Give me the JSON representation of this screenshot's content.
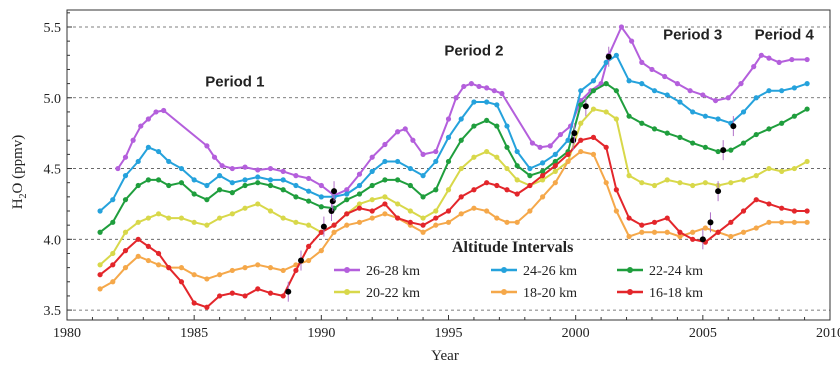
{
  "chart_data": {
    "type": "line",
    "title": "",
    "xlabel": "Year",
    "ylabel_main": "H",
    "ylabel_sub": "2",
    "ylabel_rest": "O (ppmv)",
    "xlim": [
      1980,
      2010
    ],
    "ylim": [
      3.43,
      5.62
    ],
    "xticks": [
      1980,
      1985,
      1990,
      1995,
      2000,
      2005,
      2010
    ],
    "yticks": [
      3.5,
      4.0,
      4.5,
      5.0,
      5.5
    ],
    "ytick_labels": [
      "3.5",
      "4.0",
      "4.5",
      "5.0",
      "5.5"
    ],
    "grid": "horizontal-dashed",
    "legend_title": "Altitude Intervals",
    "legend_placement": "bottom-right",
    "annotations": [
      {
        "text": "Period 1",
        "x": 1986.6,
        "y": 5.08
      },
      {
        "text": "Period 2",
        "x": 1996.0,
        "y": 5.3
      },
      {
        "text": "Period 3",
        "x": 2004.6,
        "y": 5.41
      },
      {
        "text": "Period 4",
        "x": 2008.2,
        "y": 5.41
      }
    ],
    "breakpoints": [
      {
        "x": 1988.7,
        "y": 3.63
      },
      {
        "x": 1989.2,
        "y": 3.85
      },
      {
        "x": 1990.1,
        "y": 4.09
      },
      {
        "x": 1990.4,
        "y": 4.2
      },
      {
        "x": 1990.45,
        "y": 4.27
      },
      {
        "x": 1990.5,
        "y": 4.34
      },
      {
        "x": 1999.9,
        "y": 4.7
      },
      {
        "x": 1999.95,
        "y": 4.75
      },
      {
        "x": 2000.4,
        "y": 4.94
      },
      {
        "x": 2001.3,
        "y": 5.29
      },
      {
        "x": 2005.3,
        "y": 4.12
      },
      {
        "x": 2005.6,
        "y": 4.34
      },
      {
        "x": 2005.8,
        "y": 4.63
      },
      {
        "x": 2006.2,
        "y": 4.8
      },
      {
        "x": 2005.0,
        "y": 4.0
      }
    ],
    "series": [
      {
        "name": "26-28 km",
        "color": "#b45fdc",
        "x": [
          1982.0,
          1982.3,
          1982.6,
          1982.9,
          1983.2,
          1983.5,
          1983.8,
          1985.5,
          1985.8,
          1986.1,
          1986.5,
          1987,
          1987.5,
          1988,
          1988.5,
          1989,
          1989.5,
          1990,
          1990.5,
          1991,
          1991.5,
          1992,
          1992.5,
          1993,
          1993.3,
          1993.6,
          1994,
          1994.5,
          1995,
          1995.3,
          1995.6,
          1995.9,
          1996.2,
          1996.5,
          1996.8,
          1997.1,
          1998.3,
          1998.6,
          1999,
          1999.4,
          1999.8,
          2000.2,
          2000.6,
          2001.0,
          2001.3,
          2001.8,
          2002.2,
          2002.6,
          2003,
          2003.5,
          2004,
          2004.5,
          2005,
          2005.5,
          2006,
          2006.5,
          2007,
          2007.3,
          2007.6,
          2008,
          2008.5,
          2009.1
        ],
        "y": [
          4.5,
          4.58,
          4.7,
          4.8,
          4.85,
          4.9,
          4.91,
          4.66,
          4.58,
          4.52,
          4.5,
          4.51,
          4.49,
          4.5,
          4.48,
          4.45,
          4.43,
          4.38,
          4.31,
          4.35,
          4.46,
          4.58,
          4.67,
          4.76,
          4.78,
          4.7,
          4.6,
          4.62,
          4.85,
          5.0,
          5.08,
          5.1,
          5.08,
          5.07,
          5.05,
          5.03,
          4.68,
          4.65,
          4.66,
          4.74,
          4.8,
          4.98,
          5.05,
          5.1,
          5.3,
          5.5,
          5.4,
          5.25,
          5.2,
          5.15,
          5.1,
          5.05,
          5.02,
          4.98,
          5.0,
          5.1,
          5.22,
          5.3,
          5.28,
          5.25,
          5.27,
          5.27
        ]
      },
      {
        "name": "24-26 km",
        "color": "#25a2dc",
        "x": [
          1981.3,
          1981.8,
          1982.3,
          1982.8,
          1983.2,
          1983.6,
          1984,
          1984.5,
          1985,
          1985.5,
          1986,
          1986.5,
          1987,
          1987.5,
          1988,
          1988.5,
          1989,
          1989.5,
          1990,
          1990.5,
          1991,
          1991.5,
          1992,
          1992.5,
          1993,
          1993.5,
          1994,
          1994.5,
          1995,
          1995.5,
          1996,
          1996.5,
          1996.9,
          1997.3,
          1997.7,
          1998.2,
          1998.7,
          1999.2,
          1999.7,
          2000.2,
          2000.7,
          2001.2,
          2001.6,
          2002.1,
          2002.6,
          2003.1,
          2003.6,
          2004.1,
          2004.6,
          2005.1,
          2005.6,
          2006.1,
          2006.6,
          2007.1,
          2007.6,
          2008.1,
          2008.6,
          2009.1
        ],
        "y": [
          4.2,
          4.28,
          4.45,
          4.55,
          4.65,
          4.62,
          4.55,
          4.5,
          4.42,
          4.38,
          4.45,
          4.4,
          4.42,
          4.44,
          4.42,
          4.42,
          4.38,
          4.34,
          4.3,
          4.3,
          4.32,
          4.38,
          4.48,
          4.55,
          4.55,
          4.5,
          4.45,
          4.55,
          4.72,
          4.85,
          4.97,
          4.97,
          4.95,
          4.8,
          4.62,
          4.5,
          4.54,
          4.6,
          4.7,
          5.05,
          5.12,
          5.25,
          5.3,
          5.12,
          5.1,
          5.05,
          5.02,
          4.97,
          4.9,
          4.87,
          4.85,
          4.82,
          4.9,
          5.0,
          5.05,
          5.05,
          5.07,
          5.1
        ]
      },
      {
        "name": "22-24 km",
        "color": "#1f9e3d",
        "x": [
          1981.3,
          1981.8,
          1982.3,
          1982.8,
          1983.2,
          1983.6,
          1984,
          1984.5,
          1985,
          1985.5,
          1986,
          1986.5,
          1987,
          1987.5,
          1988,
          1988.5,
          1989,
          1989.5,
          1990,
          1990.5,
          1991,
          1991.5,
          1992,
          1992.5,
          1993,
          1993.5,
          1994,
          1994.5,
          1995,
          1995.5,
          1996,
          1996.5,
          1996.9,
          1997.3,
          1997.7,
          1998.2,
          1998.7,
          1999.2,
          1999.7,
          2000.2,
          2000.7,
          2001.2,
          2001.6,
          2002.1,
          2002.6,
          2003.1,
          2003.6,
          2004.1,
          2004.6,
          2005.1,
          2005.6,
          2006.1,
          2006.6,
          2007.1,
          2007.6,
          2008.1,
          2008.6,
          2009.1
        ],
        "y": [
          4.05,
          4.12,
          4.28,
          4.38,
          4.42,
          4.42,
          4.38,
          4.4,
          4.32,
          4.28,
          4.35,
          4.33,
          4.38,
          4.4,
          4.38,
          4.35,
          4.3,
          4.27,
          4.23,
          4.22,
          4.28,
          4.32,
          4.38,
          4.42,
          4.42,
          4.38,
          4.3,
          4.35,
          4.55,
          4.7,
          4.8,
          4.84,
          4.8,
          4.65,
          4.52,
          4.45,
          4.48,
          4.55,
          4.62,
          4.95,
          5.05,
          5.1,
          5.05,
          4.87,
          4.82,
          4.78,
          4.75,
          4.72,
          4.68,
          4.65,
          4.62,
          4.63,
          4.68,
          4.74,
          4.78,
          4.82,
          4.87,
          4.92
        ]
      },
      {
        "name": "20-22 km",
        "color": "#d8d84a",
        "x": [
          1981.3,
          1981.8,
          1982.3,
          1982.8,
          1983.2,
          1983.6,
          1984,
          1984.5,
          1985,
          1985.5,
          1986,
          1986.5,
          1987,
          1987.5,
          1988,
          1988.5,
          1989,
          1989.5,
          1990,
          1990.5,
          1991,
          1991.5,
          1992,
          1992.5,
          1993,
          1993.5,
          1994,
          1994.5,
          1995,
          1995.5,
          1996,
          1996.5,
          1996.9,
          1997.3,
          1997.7,
          1998.2,
          1998.7,
          1999.2,
          1999.7,
          2000.2,
          2000.7,
          2001.2,
          2001.6,
          2002.1,
          2002.6,
          2003.1,
          2003.6,
          2004.1,
          2004.6,
          2005.1,
          2005.6,
          2006.1,
          2006.6,
          2007.1,
          2007.6,
          2008.1,
          2008.6,
          2009.1
        ],
        "y": [
          3.82,
          3.9,
          4.05,
          4.12,
          4.15,
          4.18,
          4.15,
          4.15,
          4.12,
          4.1,
          4.15,
          4.18,
          4.22,
          4.25,
          4.2,
          4.15,
          4.12,
          4.1,
          4.05,
          4.1,
          4.18,
          4.25,
          4.28,
          4.3,
          4.25,
          4.2,
          4.15,
          4.2,
          4.35,
          4.5,
          4.58,
          4.62,
          4.58,
          4.5,
          4.42,
          4.38,
          4.42,
          4.48,
          4.55,
          4.82,
          4.92,
          4.9,
          4.85,
          4.45,
          4.4,
          4.38,
          4.42,
          4.4,
          4.38,
          4.4,
          4.38,
          4.4,
          4.42,
          4.45,
          4.5,
          4.48,
          4.5,
          4.55
        ]
      },
      {
        "name": "18-20 km",
        "color": "#f5a84a",
        "x": [
          1981.3,
          1981.8,
          1982.3,
          1982.8,
          1983.2,
          1983.6,
          1984,
          1984.5,
          1985,
          1985.5,
          1986,
          1986.5,
          1987,
          1987.5,
          1988,
          1988.5,
          1989,
          1989.5,
          1990,
          1990.5,
          1991,
          1991.5,
          1992,
          1992.5,
          1993,
          1993.5,
          1994,
          1994.5,
          1995,
          1995.5,
          1996,
          1996.5,
          1996.9,
          1997.3,
          1997.7,
          1998.2,
          1998.7,
          1999.2,
          1999.7,
          2000.2,
          2000.7,
          2001.2,
          2001.6,
          2002.1,
          2002.6,
          2003.1,
          2003.6,
          2004.1,
          2004.6,
          2005.1,
          2005.6,
          2006.1,
          2006.6,
          2007.1,
          2007.6,
          2008.1,
          2008.6,
          2009.1
        ],
        "y": [
          3.65,
          3.7,
          3.8,
          3.88,
          3.85,
          3.82,
          3.8,
          3.8,
          3.75,
          3.72,
          3.75,
          3.78,
          3.8,
          3.82,
          3.8,
          3.78,
          3.82,
          3.85,
          3.92,
          4.05,
          4.1,
          4.12,
          4.15,
          4.18,
          4.15,
          4.1,
          4.05,
          4.1,
          4.12,
          4.18,
          4.22,
          4.2,
          4.15,
          4.12,
          4.12,
          4.2,
          4.3,
          4.4,
          4.55,
          4.62,
          4.6,
          4.4,
          4.2,
          4.02,
          4.05,
          4.05,
          4.05,
          4.02,
          4.05,
          4.08,
          4.05,
          4.02,
          4.05,
          4.08,
          4.12,
          4.12,
          4.12,
          4.12
        ]
      },
      {
        "name": "16-18 km",
        "color": "#e3262b",
        "x": [
          1981.3,
          1981.8,
          1982.3,
          1982.8,
          1983.2,
          1983.6,
          1984,
          1984.5,
          1985,
          1985.5,
          1986,
          1986.5,
          1987,
          1987.5,
          1988,
          1988.5,
          1989,
          1989.5,
          1990,
          1990.5,
          1991,
          1991.5,
          1992,
          1992.5,
          1993,
          1993.5,
          1994,
          1994.5,
          1995,
          1995.5,
          1996,
          1996.5,
          1996.9,
          1997.3,
          1997.7,
          1998.2,
          1998.7,
          1999.2,
          1999.7,
          2000.2,
          2000.7,
          2001.2,
          2001.6,
          2002.1,
          2002.6,
          2003.1,
          2003.6,
          2004.1,
          2004.6,
          2005.1,
          2005.6,
          2006.1,
          2006.6,
          2007.1,
          2007.6,
          2008.1,
          2008.6,
          2009.1
        ],
        "y": [
          3.75,
          3.82,
          3.92,
          4.0,
          3.95,
          3.9,
          3.8,
          3.7,
          3.55,
          3.52,
          3.6,
          3.62,
          3.6,
          3.65,
          3.62,
          3.6,
          3.78,
          3.95,
          4.05,
          4.1,
          4.18,
          4.22,
          4.2,
          4.25,
          4.15,
          4.12,
          4.1,
          4.15,
          4.2,
          4.3,
          4.35,
          4.4,
          4.38,
          4.35,
          4.32,
          4.38,
          4.45,
          4.52,
          4.6,
          4.7,
          4.72,
          4.65,
          4.35,
          4.15,
          4.1,
          4.12,
          4.15,
          4.05,
          4.0,
          3.98,
          4.05,
          4.12,
          4.2,
          4.28,
          4.25,
          4.22,
          4.2,
          4.2
        ]
      }
    ]
  }
}
